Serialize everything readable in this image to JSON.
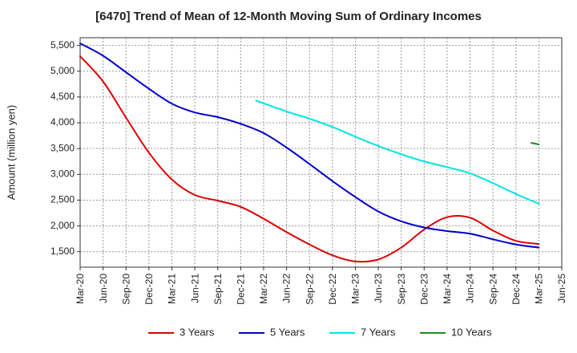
{
  "chart_data": {
    "type": "line",
    "title": "[6470]  Trend of Mean of 12-Month Moving Sum of Ordinary Incomes",
    "xlabel": "",
    "ylabel": "Amount (million yen)",
    "ylim": [
      1200,
      5650
    ],
    "yticks": [
      1500,
      2000,
      2500,
      3000,
      3500,
      4000,
      4500,
      5000,
      5500
    ],
    "ytick_labels": [
      "1,500",
      "2,000",
      "2,500",
      "3,000",
      "3,500",
      "4,000",
      "4,500",
      "5,000",
      "5,500"
    ],
    "x_tick_labels": [
      "Mar-20",
      "Jun-20",
      "Sep-20",
      "Dec-20",
      "Mar-21",
      "Jun-21",
      "Sep-21",
      "Dec-21",
      "Mar-22",
      "Jun-22",
      "Sep-22",
      "Dec-22",
      "Mar-23",
      "Jun-23",
      "Sep-23",
      "Dec-23",
      "Mar-24",
      "Jun-24",
      "Sep-24",
      "Dec-24",
      "Mar-25",
      "Jun-25"
    ],
    "grid": true,
    "legend_position": "bottom",
    "series": [
      {
        "name": "3 Years",
        "color": "#dd0000",
        "points": [
          [
            0,
            5290
          ],
          [
            1,
            4800
          ],
          [
            2,
            4100
          ],
          [
            3,
            3420
          ],
          [
            4,
            2900
          ],
          [
            5,
            2600
          ],
          [
            6,
            2490
          ],
          [
            7,
            2370
          ],
          [
            8,
            2140
          ],
          [
            9,
            1880
          ],
          [
            10,
            1640
          ],
          [
            11,
            1430
          ],
          [
            12,
            1310
          ],
          [
            13,
            1350
          ],
          [
            14,
            1580
          ],
          [
            15,
            1930
          ],
          [
            16,
            2170
          ],
          [
            17,
            2160
          ],
          [
            18,
            1910
          ],
          [
            19,
            1710
          ],
          [
            20,
            1650
          ]
        ]
      },
      {
        "name": "5 Years",
        "color": "#0000cc",
        "points": [
          [
            0,
            5540
          ],
          [
            1,
            5300
          ],
          [
            2,
            4980
          ],
          [
            3,
            4660
          ],
          [
            4,
            4370
          ],
          [
            5,
            4200
          ],
          [
            6,
            4110
          ],
          [
            7,
            3980
          ],
          [
            8,
            3800
          ],
          [
            9,
            3520
          ],
          [
            10,
            3200
          ],
          [
            11,
            2870
          ],
          [
            12,
            2560
          ],
          [
            13,
            2280
          ],
          [
            14,
            2090
          ],
          [
            15,
            1970
          ],
          [
            16,
            1900
          ],
          [
            17,
            1850
          ],
          [
            18,
            1740
          ],
          [
            19,
            1640
          ],
          [
            20,
            1580
          ]
        ]
      },
      {
        "name": "7 Years",
        "color": "#00e5e5",
        "points": [
          [
            7.67,
            4430
          ],
          [
            9,
            4220
          ],
          [
            10,
            4080
          ],
          [
            11,
            3920
          ],
          [
            12,
            3730
          ],
          [
            13,
            3550
          ],
          [
            14,
            3390
          ],
          [
            15,
            3250
          ],
          [
            16,
            3140
          ],
          [
            17,
            3020
          ],
          [
            18,
            2830
          ],
          [
            19,
            2620
          ],
          [
            20,
            2430
          ]
        ]
      },
      {
        "name": "10 Years",
        "color": "#228822",
        "points": [
          [
            19.67,
            3610
          ],
          [
            20,
            3580
          ]
        ]
      }
    ]
  }
}
